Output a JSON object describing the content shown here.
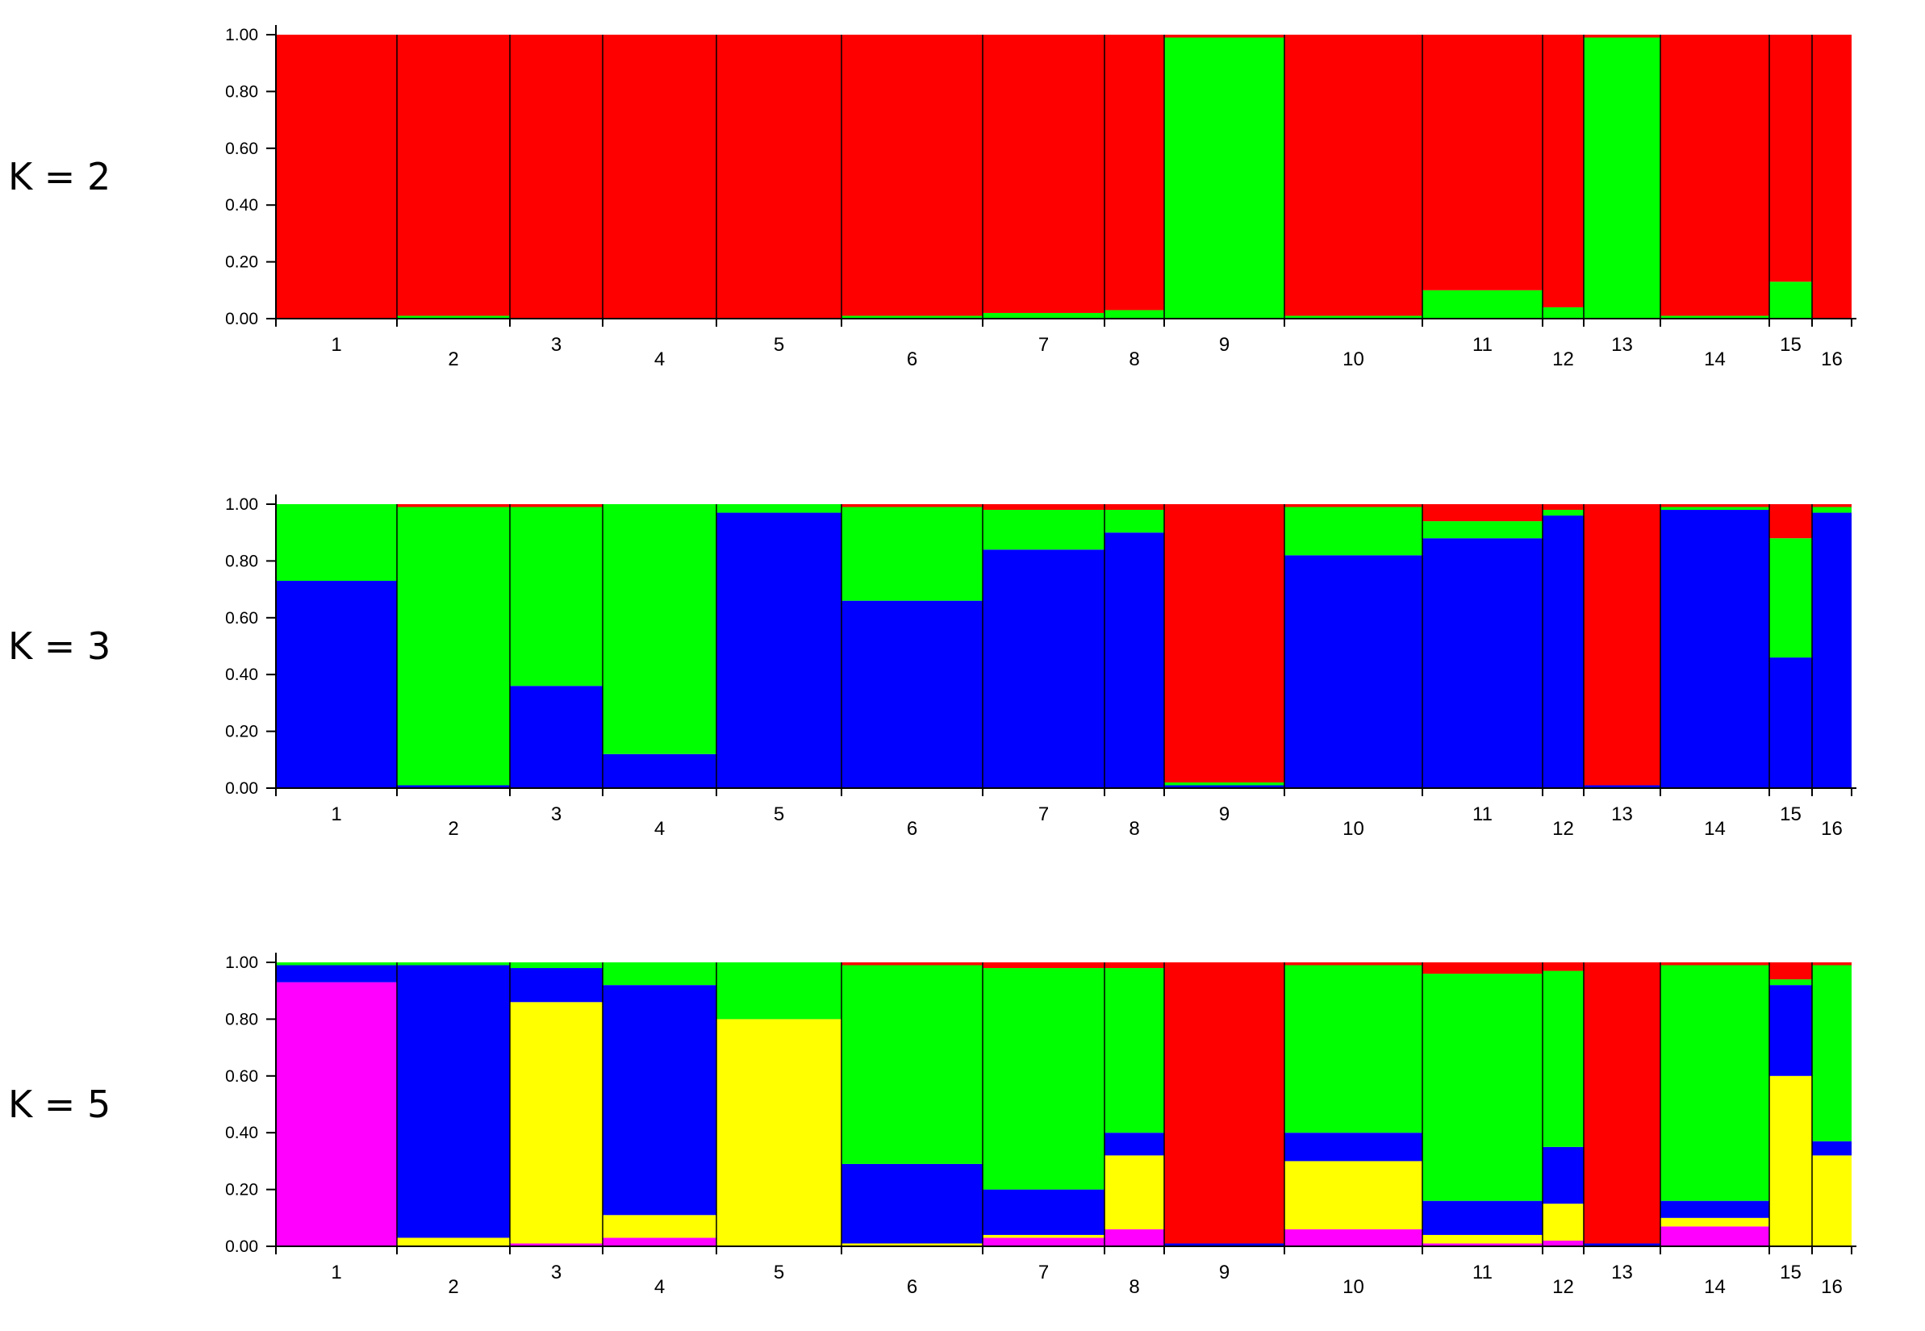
{
  "colors": {
    "red": "#ff0000",
    "green": "#00ff00",
    "blue": "#0000ff",
    "yellow": "#ffff00",
    "magenta": "#ff00ff"
  },
  "chart_data": [
    {
      "type": "bar",
      "stacked": true,
      "label": "K = 2",
      "title": "",
      "xlabel": "",
      "ylabel": "",
      "ylim": [
        0,
        1
      ],
      "yticks": [
        "0.00",
        "0.20",
        "0.40",
        "0.60",
        "0.80",
        "1.00"
      ],
      "categories": [
        "1",
        "2",
        "3",
        "4",
        "5",
        "6",
        "7",
        "8",
        "9",
        "10",
        "11",
        "12",
        "13",
        "14",
        "15",
        "16"
      ],
      "component_colors": [
        "#00ff00",
        "#ff0000"
      ],
      "series": [
        {
          "color": "#00ff00",
          "values": [
            0.0,
            0.01,
            0.0,
            0.0,
            0.0,
            0.01,
            0.02,
            0.03,
            0.99,
            0.01,
            0.1,
            0.04,
            0.99,
            0.01,
            0.13,
            0.0
          ]
        },
        {
          "color": "#ff0000",
          "values": [
            1.0,
            0.99,
            1.0,
            1.0,
            1.0,
            0.99,
            0.98,
            0.97,
            0.01,
            0.99,
            0.9,
            0.96,
            0.01,
            0.99,
            0.87,
            1.0
          ]
        }
      ]
    },
    {
      "type": "bar",
      "stacked": true,
      "label": "K = 3",
      "title": "",
      "xlabel": "",
      "ylabel": "",
      "ylim": [
        0,
        1
      ],
      "yticks": [
        "0.00",
        "0.20",
        "0.40",
        "0.60",
        "0.80",
        "1.00"
      ],
      "categories": [
        "1",
        "2",
        "3",
        "4",
        "5",
        "6",
        "7",
        "8",
        "9",
        "10",
        "11",
        "12",
        "13",
        "14",
        "15",
        "16"
      ],
      "component_colors": [
        "#0000ff",
        "#00ff00",
        "#ff0000"
      ],
      "series": [
        {
          "color": "#0000ff",
          "values": [
            0.73,
            0.01,
            0.36,
            0.12,
            0.97,
            0.66,
            0.84,
            0.9,
            0.01,
            0.82,
            0.88,
            0.96,
            0.01,
            0.98,
            0.46,
            0.97
          ]
        },
        {
          "color": "#00ff00",
          "values": [
            0.27,
            0.98,
            0.63,
            0.88,
            0.03,
            0.33,
            0.14,
            0.08,
            0.01,
            0.17,
            0.06,
            0.02,
            0.0,
            0.01,
            0.42,
            0.02
          ]
        },
        {
          "color": "#ff0000",
          "values": [
            0.0,
            0.01,
            0.01,
            0.0,
            0.0,
            0.01,
            0.02,
            0.02,
            0.98,
            0.01,
            0.06,
            0.02,
            0.99,
            0.01,
            0.12,
            0.01
          ]
        }
      ]
    },
    {
      "type": "bar",
      "stacked": true,
      "label": "K = 5",
      "title": "",
      "xlabel": "",
      "ylabel": "",
      "ylim": [
        0,
        1
      ],
      "yticks": [
        "0.00",
        "0.20",
        "0.40",
        "0.60",
        "0.80",
        "1.00"
      ],
      "categories": [
        "1",
        "2",
        "3",
        "4",
        "5",
        "6",
        "7",
        "8",
        "9",
        "10",
        "11",
        "12",
        "13",
        "14",
        "15",
        "16"
      ],
      "component_colors": [
        "#ff00ff",
        "#ffff00",
        "#0000ff",
        "#00ff00",
        "#ff0000"
      ],
      "series": [
        {
          "color": "#ff00ff",
          "values": [
            0.93,
            0.0,
            0.01,
            0.03,
            0.0,
            0.0,
            0.03,
            0.06,
            0.0,
            0.06,
            0.01,
            0.02,
            0.0,
            0.07,
            0.0,
            0.0
          ]
        },
        {
          "color": "#ffff00",
          "values": [
            0.0,
            0.03,
            0.85,
            0.08,
            0.8,
            0.01,
            0.01,
            0.26,
            0.0,
            0.24,
            0.03,
            0.13,
            0.0,
            0.03,
            0.6,
            0.32
          ]
        },
        {
          "color": "#0000ff",
          "values": [
            0.06,
            0.96,
            0.12,
            0.81,
            0.0,
            0.28,
            0.16,
            0.08,
            0.01,
            0.1,
            0.12,
            0.2,
            0.01,
            0.06,
            0.32,
            0.05
          ]
        },
        {
          "color": "#00ff00",
          "values": [
            0.01,
            0.01,
            0.02,
            0.08,
            0.2,
            0.7,
            0.78,
            0.58,
            0.0,
            0.59,
            0.8,
            0.62,
            0.0,
            0.83,
            0.02,
            0.62
          ]
        },
        {
          "color": "#ff0000",
          "values": [
            0.0,
            0.0,
            0.0,
            0.0,
            0.0,
            0.01,
            0.02,
            0.02,
            0.99,
            0.01,
            0.04,
            0.03,
            0.99,
            0.01,
            0.06,
            0.01
          ]
        }
      ]
    }
  ]
}
